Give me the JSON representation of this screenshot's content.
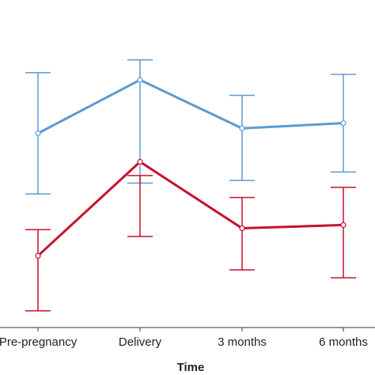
{
  "chart_data": {
    "type": "line",
    "xlabel": "Time",
    "ylabel": "",
    "categories": [
      "Pre-pregnancy",
      "Delivery",
      "3 months",
      "6 months"
    ],
    "ylim": [
      0,
      100
    ],
    "grid": false,
    "series": [
      {
        "color": "#5b9bd5",
        "values": [
          59.3,
          75.6,
          60.8,
          62.4
        ],
        "error_low": [
          40.8,
          44.1,
          44.9,
          47.5
        ],
        "error_high": [
          77.8,
          81.7,
          70.9,
          77.3
        ]
      },
      {
        "color": "#c8102e",
        "values": [
          21.9,
          50.6,
          30.3,
          31.3
        ],
        "error_low": [
          5.1,
          27.8,
          17.6,
          15.2
        ],
        "error_high": [
          29.9,
          46.4,
          39.7,
          42.8
        ]
      }
    ]
  }
}
